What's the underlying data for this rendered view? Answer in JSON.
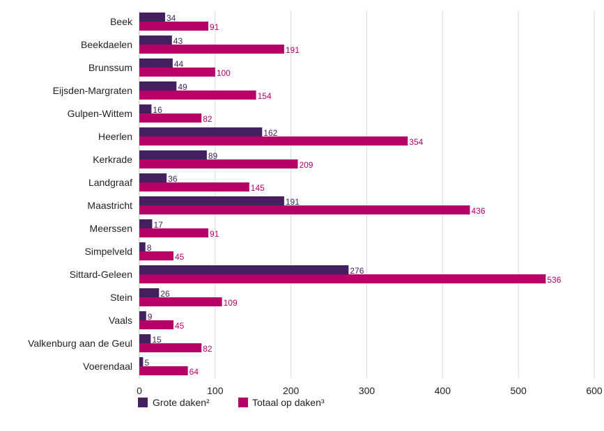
{
  "chart_data": {
    "type": "bar",
    "orientation": "horizontal",
    "categories": [
      "Beek",
      "Beekdaelen",
      "Brunssum",
      "Eijsden-Margraten",
      "Gulpen-Wittem",
      "Heerlen",
      "Kerkrade",
      "Landgraaf",
      "Maastricht",
      "Meerssen",
      "Simpelveld",
      "Sittard-Geleen",
      "Stein",
      "Vaals",
      "Valkenburg aan de Geul",
      "Voerendaal"
    ],
    "series": [
      {
        "name": "Grote daken²",
        "color": "#44205f",
        "values": [
          34,
          43,
          44,
          49,
          16,
          162,
          89,
          36,
          191,
          17,
          8,
          276,
          26,
          9,
          15,
          5
        ]
      },
      {
        "name": "Totaal op daken³",
        "color": "#b5006a",
        "values": [
          91,
          191,
          100,
          154,
          82,
          354,
          209,
          145,
          436,
          91,
          45,
          536,
          109,
          45,
          82,
          64
        ]
      }
    ],
    "xlim": [
      0,
      600
    ],
    "xticks": [
      0,
      100,
      200,
      300,
      400,
      500,
      600
    ],
    "grid": true,
    "legend": "bottom",
    "title": "",
    "xlabel": "",
    "ylabel": ""
  }
}
